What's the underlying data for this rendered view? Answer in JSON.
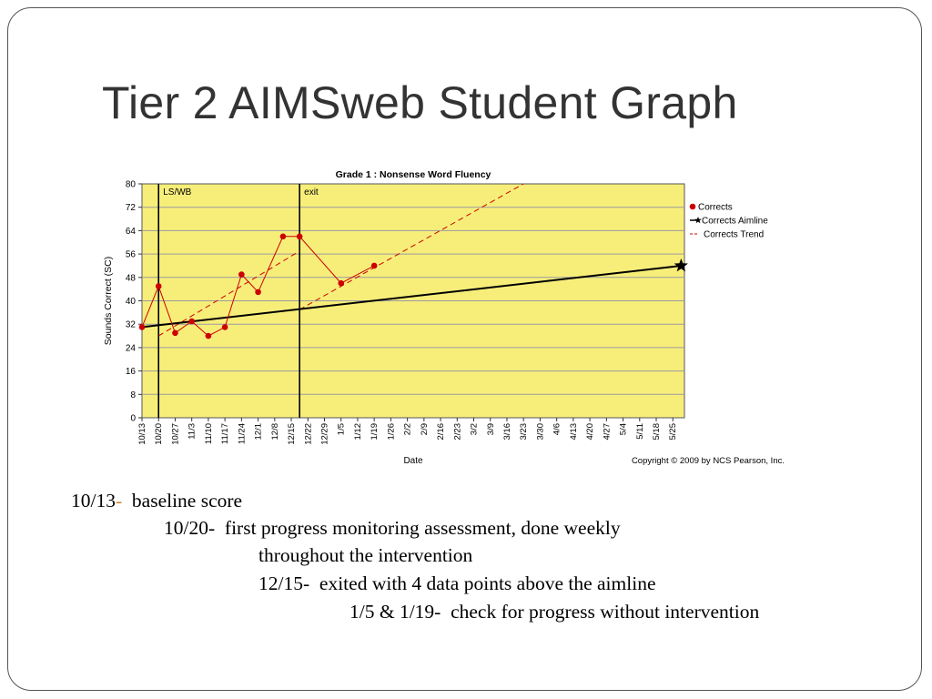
{
  "slide": {
    "title": "Tier 2 AIMSweb Student Graph"
  },
  "chart_data": {
    "type": "line",
    "title": "Grade 1 : Nonsense Word Fluency",
    "xlabel": "Date",
    "ylabel": "Sounds Correct (SC)",
    "ylim": [
      0,
      80
    ],
    "yticks": [
      0,
      8,
      16,
      24,
      32,
      40,
      48,
      56,
      64,
      72,
      80
    ],
    "grid": true,
    "legend_position": "right",
    "copyright": "Copyright © 2009 by NCS Pearson, Inc.",
    "categories": [
      "10/13",
      "10/20",
      "10/27",
      "11/3",
      "11/10",
      "11/17",
      "11/24",
      "12/1",
      "12/8",
      "12/15",
      "12/22",
      "12/29",
      "1/5",
      "1/12",
      "1/19",
      "1/26",
      "2/2",
      "2/9",
      "2/16",
      "2/23",
      "3/2",
      "3/9",
      "3/16",
      "3/23",
      "3/30",
      "4/6",
      "4/13",
      "4/20",
      "4/27",
      "5/4",
      "5/11",
      "5/18",
      "5/25"
    ],
    "phase_lines": [
      {
        "x_index": 1.0,
        "label": "LS/WB"
      },
      {
        "x_index": 9.5,
        "label": "exit"
      }
    ],
    "series": [
      {
        "name": "Corrects",
        "color": "#cc0000",
        "points": [
          {
            "x": 0,
            "y": 31
          },
          {
            "x": 1,
            "y": 45
          },
          {
            "x": 2,
            "y": 29
          },
          {
            "x": 3,
            "y": 33
          },
          {
            "x": 4,
            "y": 28
          },
          {
            "x": 5,
            "y": 31
          },
          {
            "x": 6,
            "y": 49
          },
          {
            "x": 7,
            "y": 43
          },
          {
            "x": 8.5,
            "y": 62
          },
          {
            "x": 9.5,
            "y": 62
          },
          {
            "x": 12,
            "y": 46
          },
          {
            "x": 14,
            "y": 52
          }
        ]
      },
      {
        "name": "Corrects Aimline",
        "color": "#000000",
        "points": [
          {
            "x": 0,
            "y": 31
          },
          {
            "x": 32.5,
            "y": 52
          }
        ]
      },
      {
        "name": "Corrects Trend",
        "color": "#cc0000",
        "dashed": true,
        "segments": [
          [
            {
              "x": 1,
              "y": 28
            },
            {
              "x": 9.5,
              "y": 57
            }
          ],
          [
            {
              "x": 9.5,
              "y": 37
            },
            {
              "x": 23,
              "y": 80
            }
          ]
        ]
      }
    ]
  },
  "notes": [
    {
      "date": "10/13",
      "dash": "-",
      "text": "  baseline score"
    },
    {
      "date": "10/20",
      "dash": "-",
      "text": "  first progress monitoring assessment, done weekly"
    },
    {
      "date": "",
      "dash": "",
      "text": "throughout the intervention"
    },
    {
      "date": "12/15",
      "dash": "-",
      "text": "  exited with 4 data points above the aimline"
    },
    {
      "date": "1/5 & 1/19",
      "dash": "-",
      "text": "  check for progress without intervention"
    }
  ],
  "colors": {
    "plot_background": "#f7ee7a",
    "grid": "#9a9aa0",
    "note_dash": "#d9822b"
  }
}
